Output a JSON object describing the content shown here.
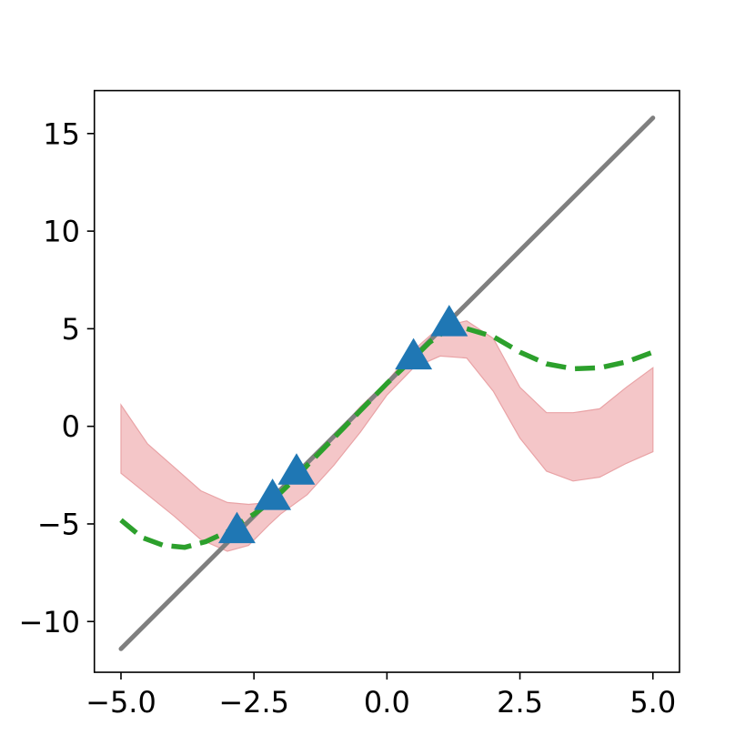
{
  "chart_data": {
    "type": "line",
    "title": "",
    "xlabel": "",
    "ylabel": "",
    "xlim": [
      -5.5,
      5.5
    ],
    "ylim": [
      -12.6,
      17.2
    ],
    "grid": false,
    "legend": "none",
    "x_ticks": [
      -5.0,
      -2.5,
      0.0,
      2.5,
      5.0
    ],
    "x_tick_labels": [
      "−5.0",
      "−2.5",
      "0.0",
      "2.5",
      "5.0"
    ],
    "y_ticks": [
      -10,
      -5,
      0,
      5,
      10,
      15
    ],
    "y_tick_labels": [
      "−10",
      "−5",
      "0",
      "5",
      "10",
      "15"
    ],
    "series": [
      {
        "kind": "line",
        "color": "#7f7f7f",
        "style": "solid",
        "x": [
          -5.0,
          5.0
        ],
        "y": [
          -11.4,
          15.8
        ]
      },
      {
        "kind": "line",
        "color": "#2ca02c",
        "style": "dashed",
        "x": [
          -5.0,
          -4.6,
          -4.2,
          -3.8,
          -3.4,
          -3.0,
          -2.8,
          -2.5,
          -2.2,
          -2.0,
          -1.7,
          -1.5,
          -1.0,
          -0.5,
          0.0,
          0.5,
          0.8,
          1.15,
          1.5,
          2.0,
          2.5,
          3.0,
          3.5,
          4.0,
          4.5,
          5.0
        ],
        "y": [
          -4.8,
          -5.7,
          -6.1,
          -6.2,
          -5.9,
          -5.4,
          -5.0,
          -4.5,
          -3.9,
          -3.4,
          -2.6,
          -2.0,
          -0.6,
          0.8,
          2.2,
          3.5,
          4.3,
          5.0,
          5.0,
          4.6,
          3.8,
          3.2,
          2.95,
          3.0,
          3.3,
          3.8
        ]
      },
      {
        "kind": "band",
        "color": "#f4c6c8",
        "edge_color": "#e9a3a6",
        "x": [
          -5.0,
          -4.5,
          -4.0,
          -3.5,
          -3.0,
          -2.6,
          -2.2,
          -2.0,
          -1.5,
          -1.0,
          -0.5,
          0.0,
          0.5,
          1.0,
          1.5,
          2.0,
          2.5,
          3.0,
          3.5,
          4.0,
          4.5,
          5.0
        ],
        "lower": [
          -2.4,
          -3.5,
          -4.6,
          -5.8,
          -6.4,
          -6.1,
          -5.0,
          -4.5,
          -3.5,
          -2.0,
          -0.3,
          1.6,
          3.0,
          3.6,
          3.5,
          1.8,
          -0.6,
          -2.3,
          -2.8,
          -2.6,
          -1.9,
          -1.3
        ],
        "upper": [
          1.1,
          -0.9,
          -2.1,
          -3.3,
          -3.9,
          -4.0,
          -3.9,
          -3.4,
          -1.9,
          -0.5,
          1.0,
          2.3,
          3.9,
          5.1,
          5.4,
          4.5,
          2.0,
          0.7,
          0.7,
          0.9,
          2.0,
          3.0
        ]
      },
      {
        "kind": "scatter",
        "marker": "triangle",
        "color": "#1f77b4",
        "x": [
          -2.82,
          -2.15,
          -1.7,
          0.5,
          1.17
        ],
        "y": [
          -5.4,
          -3.7,
          -2.4,
          3.5,
          5.2
        ]
      }
    ]
  }
}
